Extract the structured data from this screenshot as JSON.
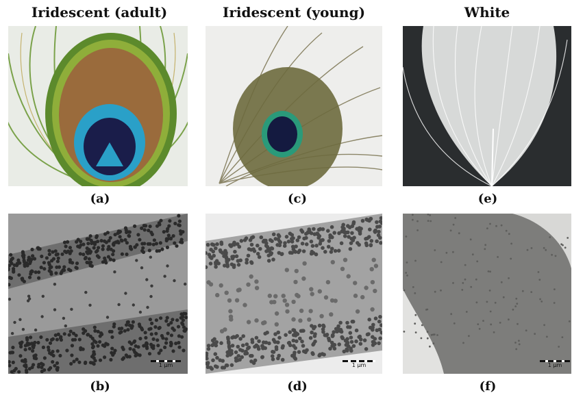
{
  "columns": [
    {
      "title": "Iridescent (adult)"
    },
    {
      "title": "Iridescent (young)"
    },
    {
      "title": "White"
    }
  ],
  "captions": {
    "a": "(a)",
    "b": "(b)",
    "c": "(c)",
    "d": "(d)",
    "e": "(e)",
    "f": "(f)"
  },
  "scale_bars": {
    "b": "1 μm",
    "d": "1 μm",
    "f": "1 μm"
  },
  "colors": {
    "feather_green": "#5f8a3a",
    "feather_bronze": "#9a6b3c",
    "eye_blue": "#2aa0c8",
    "eye_dark": "#1a1d4a",
    "white_feather_bg": "#2a2d2f",
    "tem_gray": "#8c8c8c",
    "tem_dark": "#2a2a2a"
  }
}
